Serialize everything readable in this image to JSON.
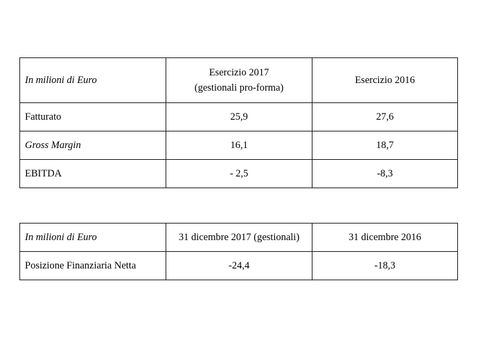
{
  "table_results": {
    "header": {
      "unit_label": "In milioni di Euro",
      "col2_line1": "Esercizio 2017",
      "col2_line2": "(gestionali pro-forma)",
      "col3": "Esercizio 2016"
    },
    "rows": [
      {
        "label": "Fatturato",
        "v2017": "25,9",
        "v2016": "27,6"
      },
      {
        "label": "Gross Margin",
        "v2017": "16,1",
        "v2016": "18,7"
      },
      {
        "label": "EBITDA",
        "v2017": "- 2,5",
        "v2016": "-8,3"
      }
    ]
  },
  "table_pfn": {
    "header": {
      "unit_label": "In milioni di Euro",
      "col2": "31 dicembre 2017 (gestionali)",
      "col3": "31 dicembre 2016"
    },
    "rows": [
      {
        "label": "Posizione Finanziaria Netta",
        "v2017": "-24,4",
        "v2016": "-18,3"
      }
    ]
  }
}
